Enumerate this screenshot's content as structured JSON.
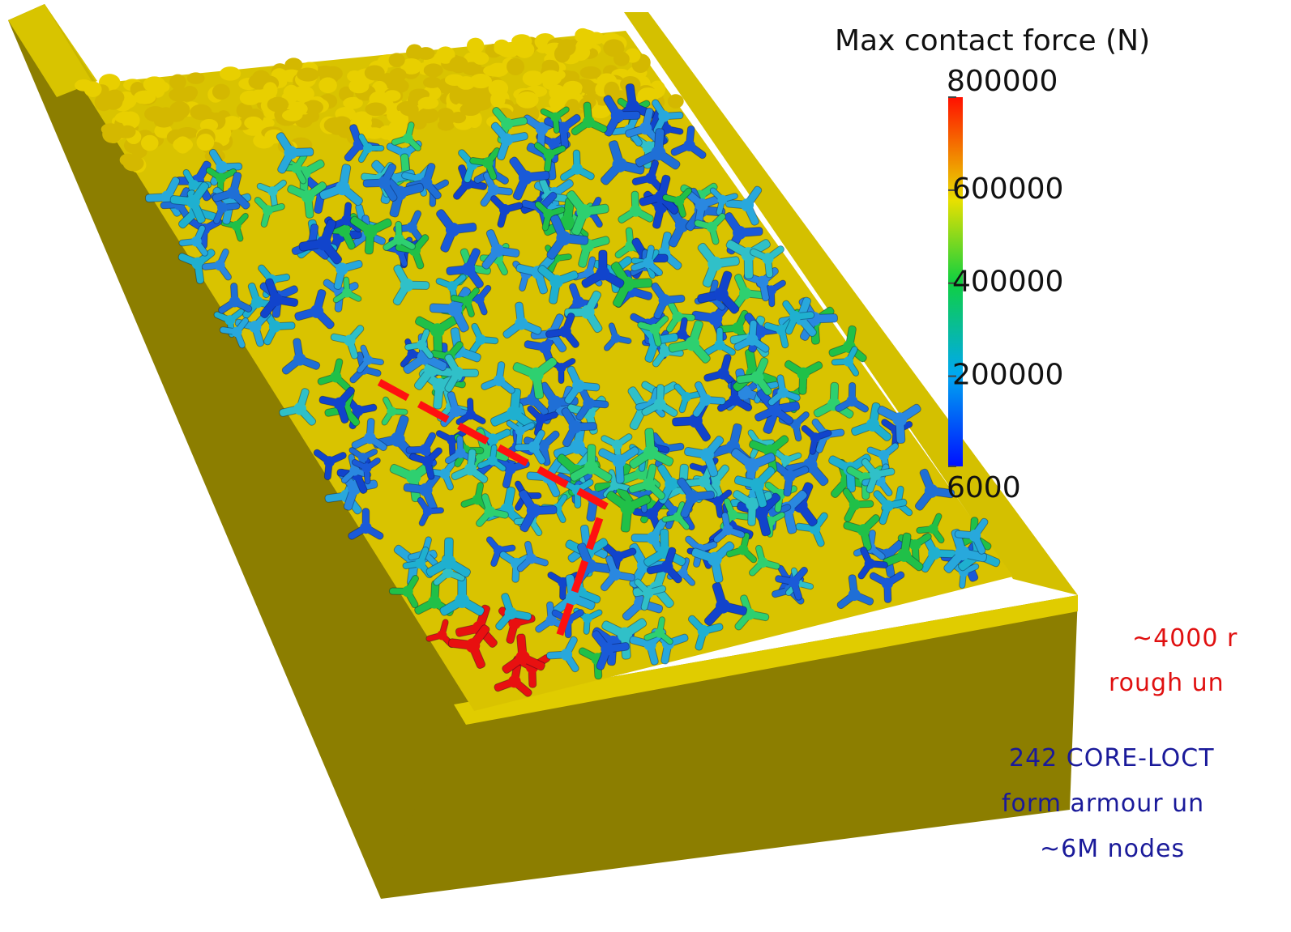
{
  "colorbar": {
    "title": "Max contact force (N)",
    "range": [
      6000,
      800000
    ],
    "ticks": [
      800000,
      600000,
      400000,
      200000,
      6000
    ]
  },
  "annotations": {
    "rock_count": "~4000 r",
    "rock_desc": "rough un",
    "units_count": "242 CORE-LOCT",
    "units_desc": "form armour un",
    "nodes": "~6M nodes"
  }
}
